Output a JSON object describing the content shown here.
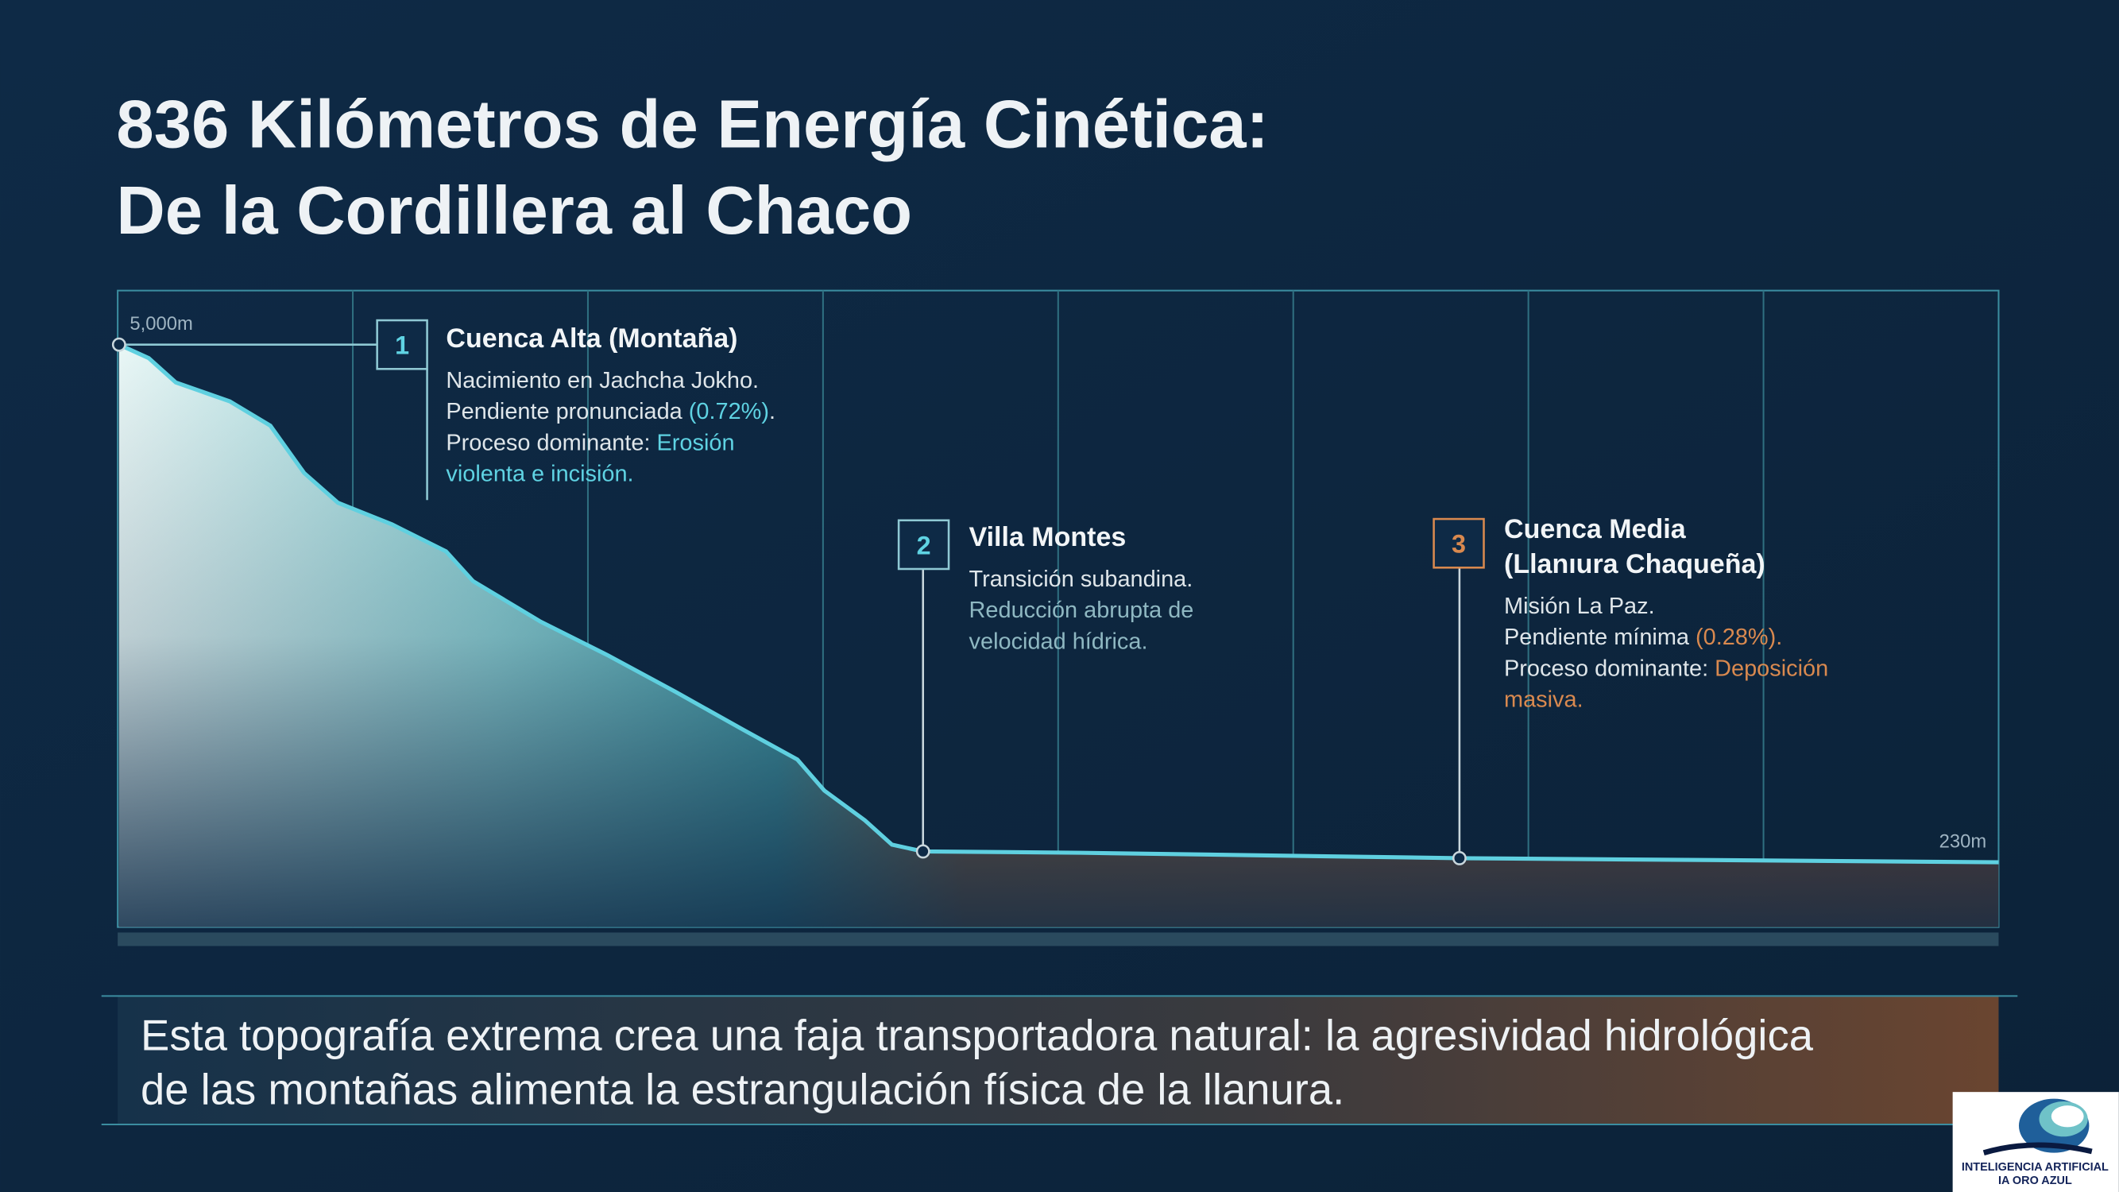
{
  "title": [
    "836 Kilómetros de Energía Cinética:",
    "De la Cordillera al Chaco"
  ],
  "profile": {
    "top_label": "5,000m",
    "bottom_label": "230m"
  },
  "annotations": [
    {
      "number": "1",
      "accent": "#5fd3e3",
      "title": [
        "Cuenca Alta (Montaña)"
      ],
      "lines": [
        [
          {
            "text": "Nacimiento en Jachcha Jokho.",
            "accent": false
          }
        ],
        [
          {
            "text": "Pendiente pronunciada ",
            "accent": false
          },
          {
            "text": "(0.72%)",
            "accent": true
          },
          {
            "text": ".",
            "accent": false
          }
        ],
        [
          {
            "text": "Proceso dominante: ",
            "accent": false
          },
          {
            "text": "Erosión",
            "accent": true
          }
        ],
        [
          {
            "text": "violenta e incisión.",
            "accent": true
          }
        ]
      ]
    },
    {
      "number": "2",
      "accent": "#8fb8c2",
      "title": [
        "Villa Montes"
      ],
      "lines": [
        [
          {
            "text": "Transición subandina.",
            "accent": false
          }
        ],
        [
          {
            "text": "Reducción abrupta de",
            "accent": true
          }
        ],
        [
          {
            "text": "velocidad hídrica.",
            "accent": true
          }
        ]
      ]
    },
    {
      "number": "3",
      "accent": "#d9894f",
      "title": [
        "Cuenca Media",
        "(Llanıura Chaqueña)"
      ],
      "lines": [
        [
          {
            "text": "Misión La Paz.",
            "accent": false
          }
        ],
        [
          {
            "text": "Pendiente mínima ",
            "accent": false
          },
          {
            "text": "(0.28%).",
            "accent": true
          }
        ],
        [
          {
            "text": "Proceso dominante: ",
            "accent": false
          },
          {
            "text": "Deposición",
            "accent": true
          }
        ],
        [
          {
            "text": "masiva.",
            "accent": true
          }
        ]
      ]
    }
  ],
  "footer": [
    "Esta topografía extrema crea una faja transportadora natural: la agresividad hidrológica",
    "de las montañas alimenta la estrangulación física de la llanura."
  ],
  "logo": [
    "INTELIGENCIA ARTIFICIAL",
    "IA ORO AZUL"
  ]
}
